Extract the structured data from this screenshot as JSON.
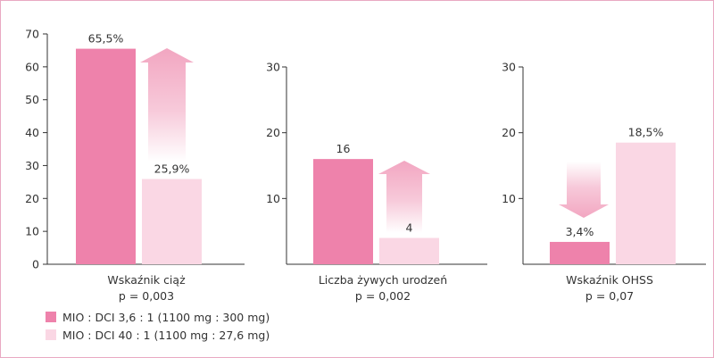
{
  "chart_data": [
    {
      "type": "bar",
      "categories": [
        "MIO : DCI 3,6 : 1 (1100 mg : 300 mg)",
        "MIO : DCI 40 : 1 (1100 mg : 27,6 mg)"
      ],
      "values": [
        65.5,
        25.9
      ],
      "value_labels": [
        "65,5%",
        "25,9%"
      ],
      "xlabel": "Wskaźnik ciąż",
      "pvalue": "p = 0,003",
      "ylim": [
        0,
        70
      ],
      "yticks": [
        0,
        10,
        20,
        30,
        40,
        50,
        60,
        70
      ],
      "arrow": "up"
    },
    {
      "type": "bar",
      "categories": [
        "MIO : DCI 3,6 : 1 (1100 mg : 300 mg)",
        "MIO : DCI 40 : 1 (1100 mg : 27,6 mg)"
      ],
      "values": [
        16,
        4
      ],
      "value_labels": [
        "16",
        "4"
      ],
      "xlabel": "Liczba żywych urodzeń",
      "pvalue": "p = 0,002",
      "ylim": [
        0,
        30
      ],
      "yticks": [
        10,
        20,
        30
      ],
      "arrow": "up"
    },
    {
      "type": "bar",
      "categories": [
        "MIO : DCI 3,6 : 1 (1100 mg : 300 mg)",
        "MIO : DCI 40 : 1 (1100 mg : 27,6 mg)"
      ],
      "values": [
        3.4,
        18.5
      ],
      "value_labels": [
        "3,4%",
        "18,5%"
      ],
      "xlabel": "Wskaźnik OHSS",
      "pvalue": "p = 0,07",
      "ylim": [
        0,
        30
      ],
      "yticks": [
        10,
        20,
        30
      ],
      "arrow": "down"
    }
  ],
  "legend": {
    "position": "bottom-left",
    "items": [
      {
        "label": "MIO : DCI 3,6 : 1 (1100 mg : 300 mg)",
        "color": "#ee82ab"
      },
      {
        "label": "MIO : DCI 40 : 1 (1100 mg : 27,6 mg)",
        "color": "#fad7e4"
      }
    ]
  },
  "colors": {
    "series_dark": "#ee82ab",
    "series_light": "#fad7e4",
    "arrow": "#f2a6c1",
    "axis": "#333333",
    "frame": "#e9a9c3"
  }
}
